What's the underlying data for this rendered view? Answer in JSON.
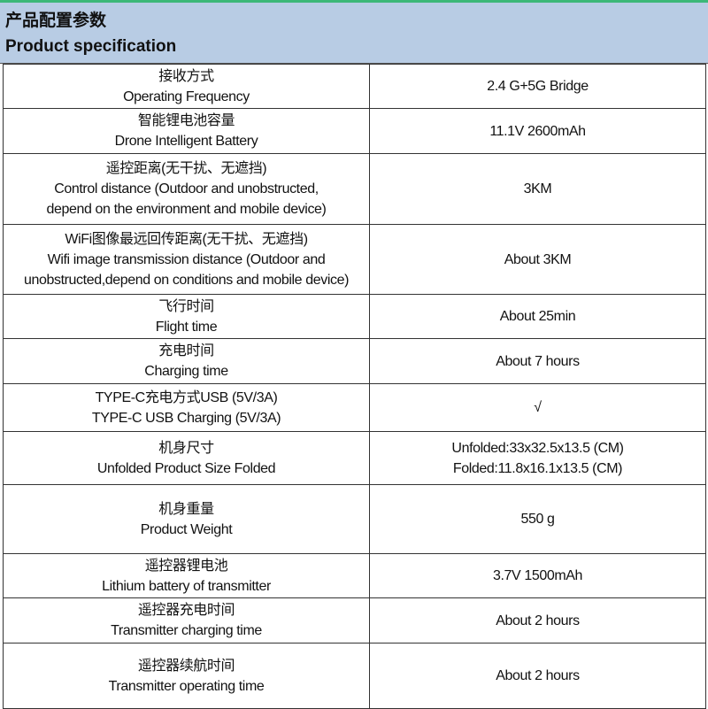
{
  "header": {
    "title_cn": "产品配置参数",
    "title_en": "Product specification"
  },
  "accent_color": "#3cb878",
  "header_bg": "#b8cce4",
  "rows": [
    {
      "label": [
        "接收方式",
        "Operating Frequency"
      ],
      "value": [
        "2.4 G+5G Bridge"
      ]
    },
    {
      "label": [
        "智能锂电池容量",
        "Drone Intelligent Battery"
      ],
      "value": [
        "11.1V 2600mAh"
      ]
    },
    {
      "label": [
        "遥控距离(无干扰、无遮挡)",
        "Control distance (Outdoor and unobstructed,",
        "depend on the environment and mobile device)"
      ],
      "value": [
        "3KM"
      ]
    },
    {
      "label": [
        "WiFi图像最远回传距离(无干扰、无遮挡)",
        "Wifi image transmission distance (Outdoor and",
        "unobstructed,depend on conditions and mobile device)"
      ],
      "value": [
        "About 3KM"
      ]
    },
    {
      "label": [
        "飞行时间",
        "Flight time"
      ],
      "value": [
        "About 25min"
      ]
    },
    {
      "label": [
        "充电时间",
        "Charging time"
      ],
      "value": [
        "About 7 hours"
      ]
    },
    {
      "label": [
        "TYPE-C充电方式USB (5V/3A)",
        "TYPE-C USB Charging (5V/3A)"
      ],
      "value": [
        "√"
      ]
    },
    {
      "label": [
        "机身尺寸",
        "Unfolded Product Size  Folded"
      ],
      "value": [
        "Unfolded:33x32.5x13.5 (CM)",
        "Folded:11.8x16.1x13.5 (CM)"
      ]
    },
    {
      "label": [
        "机身重量",
        "Product Weight"
      ],
      "value": [
        "550 g"
      ]
    },
    {
      "label": [
        "遥控器锂电池",
        "Lithium battery of transmitter"
      ],
      "value": [
        "3.7V 1500mAh"
      ]
    },
    {
      "label": [
        "遥控器充电时间",
        "Transmitter charging time"
      ],
      "value": [
        "About 2 hours"
      ]
    },
    {
      "label": [
        "遥控器续航时间",
        "Transmitter operating time"
      ],
      "value": [
        "About 2 hours"
      ]
    }
  ]
}
